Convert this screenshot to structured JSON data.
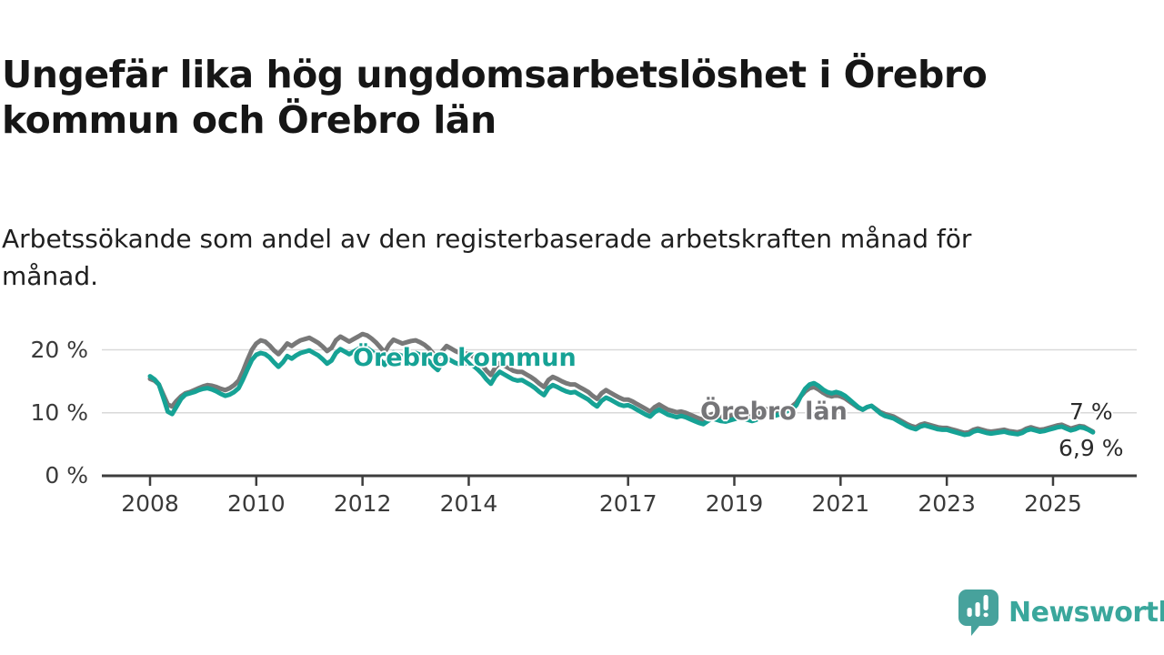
{
  "header": {
    "title": "Ungefär lika hög ungdomsarbetslöshet i Örebro kommun och Örebro län",
    "subtitle": "Arbetssökande som andel av den registerbaserade arbetskraften månad för månad."
  },
  "branding": {
    "wordmark": "Newsworthy",
    "logo_icon": "speech-bubble-bar-chart",
    "brand_color": "#3aa79c"
  },
  "chart_data": {
    "type": "line",
    "title": "Ungefär lika hög ungdomsarbetslöshet i Örebro kommun och Örebro län",
    "subtitle": "Arbetssökande som andel av den registerbaserade arbetskraften månad för månad.",
    "unit": "%",
    "x_start_year": 2008.0,
    "x_step_years": 0.0833333,
    "xlim": [
      2007.1,
      2026.6
    ],
    "ylim": [
      0,
      24
    ],
    "grid": "horizontal-only",
    "legend_position": "inline-annotations",
    "x_ticks": [
      2008,
      2010,
      2012,
      2014,
      2017,
      2019,
      2021,
      2023,
      2025
    ],
    "x_tick_labels": [
      "2008",
      "2010",
      "2012",
      "2014",
      "2017",
      "2019",
      "2021",
      "2023",
      "2025"
    ],
    "y_ticks": [
      {
        "value": 0,
        "label": "0 %"
      },
      {
        "value": 10,
        "label": "10 %"
      },
      {
        "value": 20,
        "label": "20 %"
      }
    ],
    "annotations": {
      "kommun_label": "Örebro kommun",
      "lan_label": "Örebro län",
      "lan_end_label": "7 %",
      "kommun_end_label": "6,9 %"
    },
    "series": [
      {
        "name": "Örebro län",
        "color": "#787878",
        "last_value": 7.0,
        "values": [
          15.4,
          15.1,
          14.5,
          12.9,
          11.3,
          11.0,
          11.9,
          12.6,
          13.1,
          13.3,
          13.6,
          13.9,
          14.2,
          14.4,
          14.3,
          14.1,
          13.8,
          13.6,
          13.9,
          14.4,
          15.1,
          16.6,
          18.4,
          20.0,
          21.0,
          21.5,
          21.3,
          20.7,
          19.9,
          19.3,
          20.1,
          21.0,
          20.6,
          21.1,
          21.5,
          21.7,
          21.9,
          21.5,
          21.1,
          20.5,
          19.8,
          20.3,
          21.5,
          22.1,
          21.7,
          21.3,
          21.7,
          22.1,
          22.5,
          22.3,
          21.8,
          21.2,
          20.4,
          19.6,
          20.8,
          21.6,
          21.3,
          21.0,
          21.2,
          21.4,
          21.5,
          21.2,
          20.8,
          20.2,
          19.4,
          18.7,
          19.8,
          20.6,
          20.2,
          19.8,
          19.5,
          19.4,
          19.4,
          18.9,
          18.3,
          17.6,
          16.7,
          16.0,
          17.2,
          17.9,
          17.5,
          17.1,
          16.7,
          16.5,
          16.5,
          16.1,
          15.7,
          15.2,
          14.6,
          14.1,
          15.2,
          15.7,
          15.4,
          15.0,
          14.7,
          14.5,
          14.5,
          14.1,
          13.7,
          13.3,
          12.7,
          12.2,
          13.1,
          13.6,
          13.2,
          12.8,
          12.4,
          12.1,
          12.1,
          11.8,
          11.4,
          11.0,
          10.6,
          10.2,
          10.9,
          11.3,
          10.9,
          10.5,
          10.3,
          10.1,
          10.2,
          10.0,
          9.7,
          9.4,
          9.1,
          8.9,
          9.4,
          9.8,
          9.6,
          9.4,
          9.3,
          9.5,
          9.7,
          9.9,
          9.8,
          9.6,
          9.4,
          9.6,
          10.2,
          10.6,
          10.4,
          10.2,
          10.4,
          10.6,
          10.8,
          11.0,
          11.6,
          12.6,
          13.4,
          13.9,
          14.1,
          13.7,
          13.2,
          12.8,
          12.6,
          12.8,
          12.6,
          12.3,
          11.8,
          11.3,
          10.8,
          10.5,
          10.9,
          11.1,
          10.6,
          10.1,
          9.8,
          9.6,
          9.4,
          9.0,
          8.6,
          8.2,
          7.9,
          7.7,
          8.1,
          8.3,
          8.1,
          7.9,
          7.7,
          7.6,
          7.6,
          7.4,
          7.2,
          7.0,
          6.8,
          6.9,
          7.3,
          7.5,
          7.3,
          7.1,
          7.0,
          7.1,
          7.2,
          7.3,
          7.1,
          7.0,
          6.9,
          7.1,
          7.5,
          7.7,
          7.5,
          7.3,
          7.4,
          7.6,
          7.8,
          8.0,
          8.1,
          7.8,
          7.5,
          7.7,
          7.9,
          7.8,
          7.4,
          7.0
        ]
      },
      {
        "name": "Örebro kommun",
        "color": "#16a295",
        "last_value": 6.9,
        "values": [
          15.8,
          15.3,
          14.5,
          12.4,
          10.2,
          9.8,
          11.0,
          12.2,
          12.9,
          13.1,
          13.3,
          13.6,
          13.8,
          13.9,
          13.7,
          13.4,
          13.0,
          12.7,
          12.9,
          13.3,
          13.9,
          15.3,
          16.9,
          18.4,
          19.2,
          19.5,
          19.3,
          18.8,
          18.0,
          17.3,
          18.0,
          19.0,
          18.6,
          19.1,
          19.5,
          19.7,
          19.9,
          19.5,
          19.1,
          18.5,
          17.8,
          18.3,
          19.5,
          20.1,
          19.7,
          19.3,
          19.7,
          20.1,
          20.5,
          20.3,
          19.8,
          19.2,
          18.4,
          17.6,
          18.8,
          19.6,
          19.3,
          19.0,
          19.2,
          19.4,
          19.5,
          19.2,
          18.8,
          18.2,
          17.4,
          16.8,
          17.9,
          18.7,
          18.3,
          17.9,
          17.7,
          17.8,
          18.0,
          17.5,
          16.9,
          16.2,
          15.3,
          14.6,
          15.8,
          16.5,
          16.1,
          15.7,
          15.3,
          15.1,
          15.2,
          14.8,
          14.4,
          13.9,
          13.3,
          12.8,
          13.9,
          14.4,
          14.1,
          13.7,
          13.4,
          13.2,
          13.3,
          12.9,
          12.5,
          12.1,
          11.5,
          11.0,
          11.9,
          12.4,
          12.1,
          11.7,
          11.3,
          11.1,
          11.2,
          10.9,
          10.5,
          10.1,
          9.7,
          9.4,
          10.1,
          10.5,
          10.1,
          9.7,
          9.5,
          9.3,
          9.5,
          9.3,
          9.0,
          8.7,
          8.4,
          8.2,
          8.7,
          9.1,
          8.9,
          8.7,
          8.6,
          8.8,
          9.0,
          9.2,
          9.1,
          8.9,
          8.7,
          8.9,
          9.5,
          9.9,
          9.7,
          9.5,
          9.7,
          9.9,
          10.3,
          10.5,
          11.2,
          12.6,
          13.8,
          14.5,
          14.7,
          14.3,
          13.7,
          13.3,
          13.1,
          13.3,
          13.1,
          12.7,
          12.1,
          11.5,
          10.9,
          10.5,
          10.9,
          11.1,
          10.5,
          9.9,
          9.5,
          9.3,
          9.1,
          8.7,
          8.3,
          7.9,
          7.6,
          7.4,
          7.8,
          8.0,
          7.8,
          7.6,
          7.4,
          7.3,
          7.3,
          7.1,
          6.9,
          6.7,
          6.5,
          6.6,
          7.0,
          7.2,
          7.0,
          6.8,
          6.7,
          6.8,
          6.9,
          7.0,
          6.8,
          6.7,
          6.6,
          6.8,
          7.2,
          7.4,
          7.2,
          7.0,
          7.1,
          7.3,
          7.5,
          7.7,
          7.8,
          7.5,
          7.2,
          7.4,
          7.7,
          7.6,
          7.3,
          6.9
        ]
      }
    ]
  }
}
